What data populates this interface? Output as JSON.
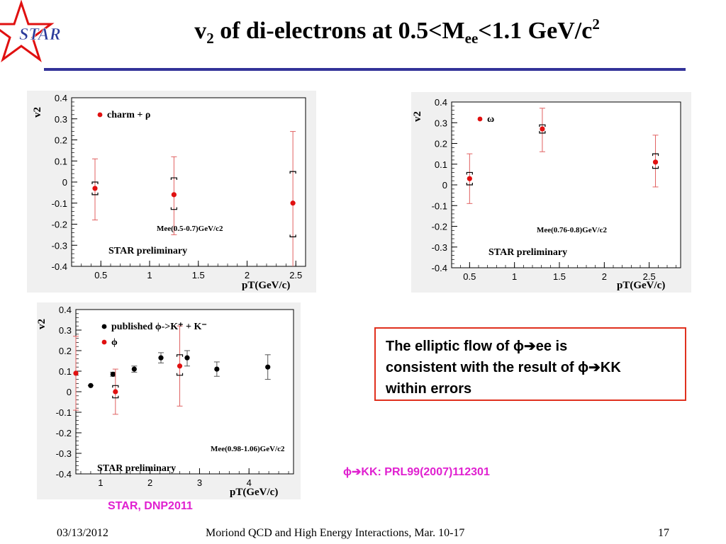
{
  "title": {
    "v": "v",
    "v_sub": "2",
    "middle": " of di-electrons at 0.5<M",
    "m_sub": "ee",
    "end": "<1.1 GeV/c",
    "end_sup": "2"
  },
  "logo_text": "STAR",
  "colors": {
    "accent": "#333399",
    "data_red": "#e01010",
    "callout_border": "#e0301e",
    "reference_magenta": "#e020d0",
    "logo_red": "#e01010",
    "logo_blue": "#2a3a9a"
  },
  "callout": {
    "line1": "The elliptic flow of ϕ➔ee is",
    "line2": "consistent with the result of ϕ➔KK",
    "line3": "within errors"
  },
  "references": {
    "kk": "ϕ➔KK: PRL99(2007)112301",
    "dnp": "STAR, DNP2011"
  },
  "footer": {
    "date": "03/13/2012",
    "conference": "Moriond QCD and High Energy Interactions, Mar. 10-17",
    "page": "17"
  },
  "chart_data": [
    {
      "type": "scatter",
      "xlabel": "pT(GeV/c)",
      "ylabel": "v2",
      "xlim": [
        0.2,
        2.6
      ],
      "ylim": [
        -0.4,
        0.4
      ],
      "xticks": [
        0.5,
        1,
        1.5,
        2,
        2.5
      ],
      "yticks": [
        -0.4,
        -0.3,
        -0.2,
        -0.1,
        0,
        0.1,
        0.2,
        0.3,
        0.4
      ],
      "grid": false,
      "annotations": {
        "range": "Mee(0.5-0.7)GeV/c2",
        "preliminary": "STAR preliminary"
      },
      "series": [
        {
          "name": "charm + ρ",
          "color": "#e01010",
          "x": [
            0.44,
            1.25,
            2.47
          ],
          "y": [
            -0.03,
            -0.06,
            -0.1
          ],
          "stat_low": [
            -0.18,
            -0.25,
            -0.44
          ],
          "stat_high": [
            0.11,
            0.12,
            0.24
          ],
          "sys_low": [
            -0.06,
            -0.13,
            -0.26
          ],
          "sys_high": [
            0.0,
            0.02,
            0.05
          ]
        }
      ]
    },
    {
      "type": "scatter",
      "xlabel": "pT(GeV/c)",
      "ylabel": "v2",
      "xlim": [
        0.3,
        2.85
      ],
      "ylim": [
        -0.4,
        0.4
      ],
      "xticks": [
        0.5,
        1,
        1.5,
        2,
        2.5
      ],
      "yticks": [
        -0.4,
        -0.3,
        -0.2,
        -0.1,
        0,
        0.1,
        0.2,
        0.3,
        0.4
      ],
      "grid": false,
      "annotations": {
        "range": "Mee(0.76-0.8)GeV/c2",
        "preliminary": "STAR preliminary"
      },
      "series": [
        {
          "name": "ω",
          "color": "#e01010",
          "x": [
            0.5,
            1.31,
            2.57
          ],
          "y": [
            0.03,
            0.27,
            0.11
          ],
          "stat_low": [
            -0.09,
            0.16,
            -0.01
          ],
          "stat_high": [
            0.15,
            0.37,
            0.24
          ],
          "sys_low": [
            0.0,
            0.25,
            0.08
          ],
          "sys_high": [
            0.06,
            0.29,
            0.15
          ]
        }
      ]
    },
    {
      "type": "scatter",
      "xlabel": "pT(GeV/c)",
      "ylabel": "v2",
      "xlim": [
        0.5,
        4.9
      ],
      "ylim": [
        -0.4,
        0.4
      ],
      "xticks": [
        1,
        2,
        3,
        4
      ],
      "yticks": [
        -0.4,
        -0.3,
        -0.2,
        -0.1,
        0,
        0.1,
        0.2,
        0.3,
        0.4
      ],
      "grid": false,
      "annotations": {
        "range": "Mee(0.98-1.06)GeV/c2",
        "preliminary": "STAR preliminary"
      },
      "series": [
        {
          "name": "published ϕ->K⁺ + K⁻",
          "color": "#000000",
          "x": [
            0.8,
            1.25,
            1.68,
            2.22,
            2.75,
            3.35,
            4.38
          ],
          "y": [
            0.03,
            0.085,
            0.11,
            0.165,
            0.165,
            0.11,
            0.12
          ],
          "stat_low": [
            0.03,
            0.075,
            0.095,
            0.14,
            0.125,
            0.075,
            0.06
          ],
          "stat_high": [
            0.03,
            0.095,
            0.125,
            0.19,
            0.2,
            0.145,
            0.18
          ]
        },
        {
          "name": "ϕ",
          "color": "#e01010",
          "x": [
            0.5,
            1.3,
            2.6
          ],
          "y": [
            0.09,
            0.0,
            0.125
          ],
          "stat_low": [
            -0.09,
            -0.11,
            -0.07
          ],
          "stat_high": [
            0.27,
            0.11,
            0.32
          ],
          "sys_low": [
            null,
            -0.03,
            0.08
          ],
          "sys_high": [
            null,
            0.03,
            0.18
          ]
        }
      ]
    }
  ]
}
